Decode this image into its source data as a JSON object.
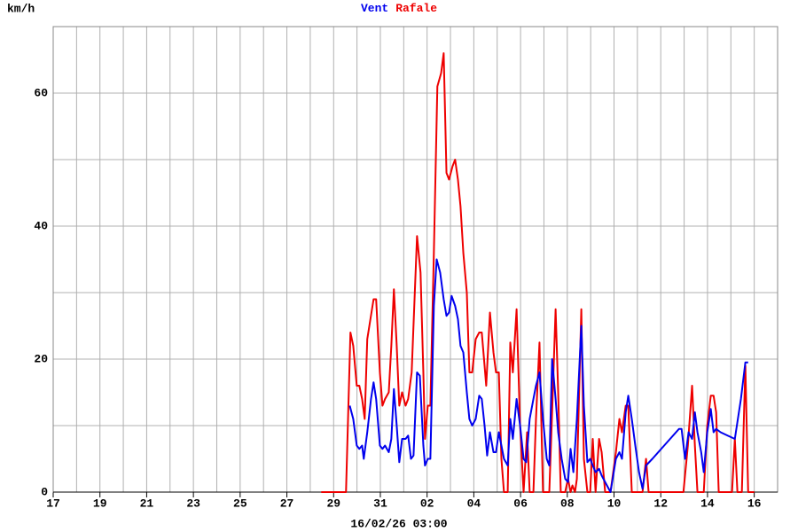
{
  "chart_data": {
    "type": "line",
    "ylabel": "km/h",
    "footer": "16/02/26 03:00",
    "xlim": [
      0,
      31
    ],
    "xticks": [
      {
        "value": 0,
        "label": "17"
      },
      {
        "value": 2,
        "label": "19"
      },
      {
        "value": 4,
        "label": "21"
      },
      {
        "value": 6,
        "label": "23"
      },
      {
        "value": 8,
        "label": "25"
      },
      {
        "value": 10,
        "label": "27"
      },
      {
        "value": 12,
        "label": "29"
      },
      {
        "value": 14,
        "label": "31"
      },
      {
        "value": 16,
        "label": "02"
      },
      {
        "value": 18,
        "label": "04"
      },
      {
        "value": 20,
        "label": "06"
      },
      {
        "value": 22,
        "label": "08"
      },
      {
        "value": 24,
        "label": "10"
      },
      {
        "value": 26,
        "label": "12"
      },
      {
        "value": 28,
        "label": "14"
      },
      {
        "value": 30,
        "label": "16"
      }
    ],
    "ylim": [
      0,
      70
    ],
    "yticks": [
      0,
      20,
      40,
      60
    ],
    "grid": true,
    "series": [
      {
        "name": "Vent",
        "color": "#0000ee",
        "x": [
          12.69,
          12.84,
          12.99,
          13.1,
          13.22,
          13.29,
          13.44,
          13.6,
          13.71,
          13.82,
          13.98,
          14.09,
          14.2,
          14.36,
          14.47,
          14.58,
          14.7,
          14.81,
          14.93,
          15.08,
          15.19,
          15.31,
          15.42,
          15.57,
          15.69,
          15.84,
          15.91,
          16.03,
          16.14,
          16.29,
          16.41,
          16.56,
          16.71,
          16.83,
          16.94,
          17.05,
          17.2,
          17.32,
          17.43,
          17.55,
          17.7,
          17.81,
          17.93,
          18.08,
          18.23,
          18.34,
          18.46,
          18.57,
          18.69,
          18.84,
          18.95,
          19.07,
          19.18,
          19.29,
          19.45,
          19.56,
          19.67,
          19.83,
          19.98,
          20.13,
          20.24,
          20.39,
          20.55,
          20.66,
          20.81,
          20.96,
          21.12,
          21.23,
          21.35,
          21.5,
          21.61,
          21.76,
          21.91,
          22.03,
          22.14,
          22.26,
          22.41,
          22.6,
          22.71,
          22.86,
          22.98,
          23.09,
          23.21,
          23.36,
          23.47,
          23.62,
          23.85,
          24.08,
          24.23,
          24.34,
          24.5,
          24.61,
          24.76,
          24.91,
          25.07,
          25.22,
          25.37,
          25.64,
          26.02,
          26.4,
          26.78,
          26.89,
          27.04,
          27.19,
          27.34,
          27.46,
          27.57,
          27.73,
          27.84,
          27.99,
          28.14,
          28.26,
          28.37,
          28.56,
          28.86,
          29.17,
          29.43,
          29.62,
          29.74
        ],
        "values": [
          13,
          11,
          7,
          6.5,
          7,
          5,
          9,
          14,
          16.5,
          14,
          7,
          6.5,
          7,
          6,
          8,
          15.5,
          10,
          4.5,
          8,
          8,
          8.5,
          5,
          5.5,
          18,
          17.5,
          7,
          4,
          5,
          5,
          28,
          35,
          33,
          29,
          26.5,
          27,
          29.5,
          28,
          26,
          22,
          21,
          15,
          11,
          10,
          11,
          14.5,
          14,
          10,
          5.5,
          9,
          6,
          6,
          9,
          7,
          5,
          4,
          11,
          8,
          14,
          10,
          5,
          4.5,
          11,
          14,
          16,
          18,
          11,
          5,
          4,
          20,
          14,
          9,
          5,
          2,
          1.5,
          6.5,
          3,
          11,
          25,
          13,
          4.5,
          5,
          4,
          3,
          3.5,
          2.5,
          1.5,
          0,
          5,
          6,
          5,
          12,
          14.5,
          11,
          7,
          3,
          0.5,
          4,
          5,
          6.5,
          8,
          9.5,
          9.5,
          5,
          9,
          8,
          12,
          9,
          6,
          3,
          9,
          12.5,
          9,
          9.5,
          9,
          8.5,
          8,
          14,
          19.5,
          19.5
        ]
      },
      {
        "name": "Rafale",
        "color": "#ee0000",
        "x": [
          11.47,
          12.53,
          12.72,
          12.84,
          12.99,
          13.1,
          13.22,
          13.33,
          13.44,
          13.71,
          13.82,
          13.98,
          14.09,
          14.2,
          14.36,
          14.47,
          14.58,
          14.7,
          14.81,
          14.93,
          15.08,
          15.19,
          15.34,
          15.57,
          15.72,
          15.84,
          15.91,
          16.03,
          16.14,
          16.29,
          16.44,
          16.6,
          16.71,
          16.83,
          16.94,
          17.09,
          17.2,
          17.32,
          17.43,
          17.55,
          17.7,
          17.81,
          17.93,
          18.08,
          18.23,
          18.34,
          18.46,
          18.53,
          18.69,
          18.84,
          18.95,
          19.07,
          19.18,
          19.29,
          19.45,
          19.56,
          19.67,
          19.83,
          19.98,
          20.13,
          20.28,
          20.39,
          20.55,
          20.66,
          20.81,
          20.96,
          21.12,
          21.23,
          21.35,
          21.5,
          21.61,
          21.72,
          21.91,
          22.03,
          22.14,
          22.22,
          22.33,
          22.41,
          22.6,
          22.71,
          22.86,
          22.98,
          23.09,
          23.21,
          23.36,
          23.47,
          23.62,
          23.85,
          24.08,
          24.23,
          24.34,
          24.5,
          24.61,
          24.76,
          24.99,
          25.22,
          25.37,
          25.48,
          26.97,
          27.16,
          27.34,
          27.46,
          27.57,
          27.84,
          27.99,
          28.14,
          28.26,
          28.37,
          28.48,
          29.05,
          29.17,
          29.28,
          29.47,
          29.62,
          29.74,
          30.0
        ],
        "values": [
          0,
          0,
          24,
          22,
          16,
          16,
          14,
          11,
          23,
          29,
          29,
          18,
          13,
          14,
          15,
          22,
          30.5,
          22,
          13,
          15,
          13,
          14,
          18,
          38.5,
          33,
          18,
          8,
          13,
          13,
          36,
          61,
          63,
          66,
          48,
          47,
          49,
          50,
          47,
          43,
          36,
          30,
          18,
          18,
          23,
          24,
          24,
          19,
          16,
          27,
          21,
          18,
          18,
          5,
          0,
          0,
          22.5,
          18,
          27.5,
          10,
          0,
          9,
          0,
          0,
          11,
          22.5,
          0,
          0,
          0,
          12,
          27.5,
          15,
          0,
          0,
          2,
          0,
          1,
          0,
          2,
          27.5,
          5,
          0,
          0,
          8,
          0,
          8,
          6,
          0,
          0,
          6,
          11,
          9,
          13,
          13,
          0,
          0,
          0,
          5,
          0,
          0,
          7,
          16,
          7,
          0,
          0,
          10,
          14.5,
          14.5,
          12,
          0,
          0,
          8,
          0,
          0,
          19,
          0,
          0
        ]
      }
    ]
  }
}
